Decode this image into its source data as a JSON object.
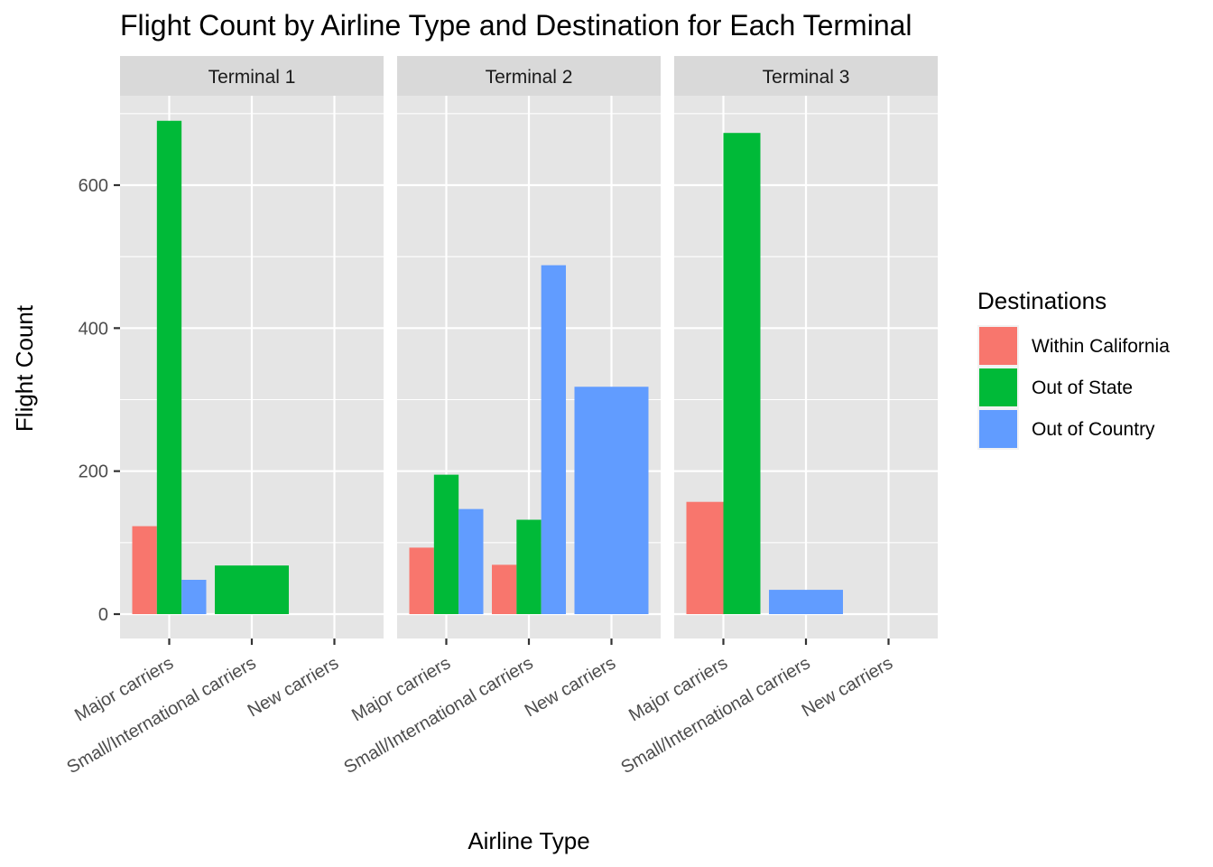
{
  "chart_data": {
    "type": "bar",
    "title": "Flight Count by Airline Type and Destination for Each Terminal",
    "xlabel": "Airline Type",
    "ylabel": "Flight Count",
    "ylim": [
      -35,
      720
    ],
    "yticks": [
      0,
      200,
      400,
      600
    ],
    "categories": [
      "Major carriers",
      "Small/International carriers",
      "New carriers"
    ],
    "facets": [
      "Terminal 1",
      "Terminal 2",
      "Terminal 3"
    ],
    "legend": {
      "title": "Destinations",
      "position": "right",
      "items": [
        {
          "name": "Within California",
          "color": "#F8766D"
        },
        {
          "name": "Out of State",
          "color": "#00BA38"
        },
        {
          "name": "Out of Country",
          "color": "#619CFF"
        }
      ]
    },
    "bars": [
      {
        "facet": "Terminal 1",
        "category": "Major carriers",
        "groups": [
          {
            "series": "Within California",
            "value": 123
          },
          {
            "series": "Out of State",
            "value": 690
          },
          {
            "series": "Out of Country",
            "value": 48
          }
        ]
      },
      {
        "facet": "Terminal 1",
        "category": "Small/International carriers",
        "groups": [
          {
            "series": "Out of State",
            "value": 68
          }
        ]
      },
      {
        "facet": "Terminal 2",
        "category": "Major carriers",
        "groups": [
          {
            "series": "Within California",
            "value": 93
          },
          {
            "series": "Out of State",
            "value": 195
          },
          {
            "series": "Out of Country",
            "value": 147
          }
        ]
      },
      {
        "facet": "Terminal 2",
        "category": "Small/International carriers",
        "groups": [
          {
            "series": "Within California",
            "value": 69
          },
          {
            "series": "Out of State",
            "value": 132
          },
          {
            "series": "Out of Country",
            "value": 488
          }
        ]
      },
      {
        "facet": "Terminal 2",
        "category": "New carriers",
        "groups": [
          {
            "series": "Out of Country",
            "value": 318
          }
        ]
      },
      {
        "facet": "Terminal 3",
        "category": "Major carriers",
        "groups": [
          {
            "series": "Within California",
            "value": 157
          },
          {
            "series": "Out of State",
            "value": 673
          }
        ]
      },
      {
        "facet": "Terminal 3",
        "category": "Small/International carriers",
        "groups": [
          {
            "series": "Out of Country",
            "value": 34
          }
        ]
      }
    ]
  },
  "colors": {
    "panel_bg": "#E5E5E5",
    "strip_bg": "#D9D9D9",
    "grid": "#FFFFFF"
  }
}
